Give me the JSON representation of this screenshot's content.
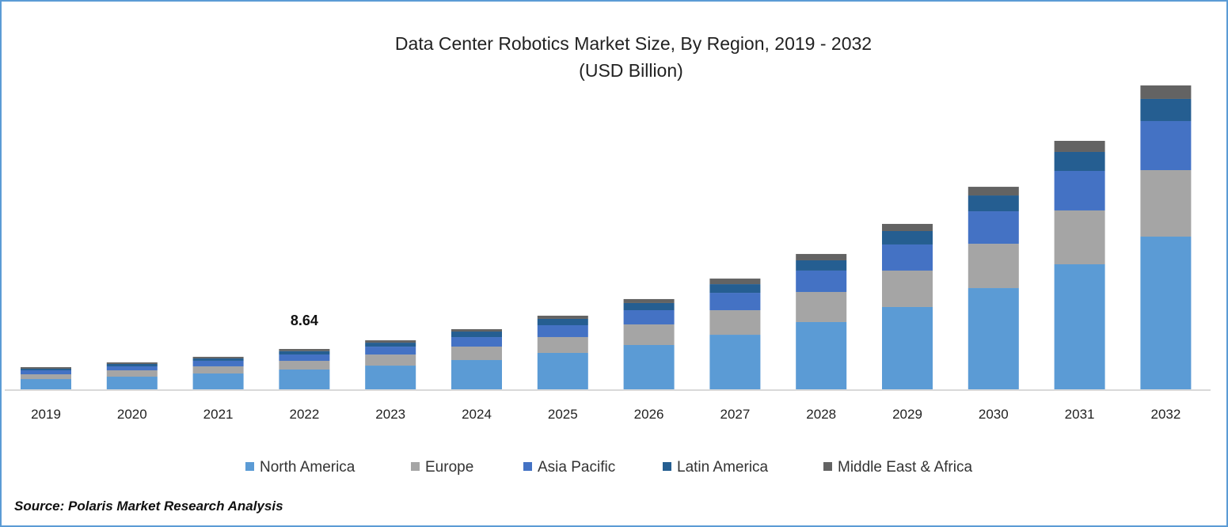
{
  "chart_data": {
    "type": "bar",
    "stacked": true,
    "title": "Data Center Robotics Market Size, By Region, 2019 - 2032",
    "subtitle": "(USD Billion)",
    "xlabel": "",
    "ylabel": "",
    "ylim": [
      0,
      70
    ],
    "grid": false,
    "legend": "bottom",
    "categories": [
      "2019",
      "2020",
      "2021",
      "2022",
      "2023",
      "2024",
      "2025",
      "2026",
      "2027",
      "2028",
      "2029",
      "2030",
      "2031",
      "2032"
    ],
    "series": [
      {
        "name": "North America",
        "color": "#5b9bd5",
        "values": [
          2.2,
          2.71,
          3.39,
          4.24,
          5.08,
          6.27,
          7.8,
          9.49,
          11.69,
          14.41,
          17.63,
          21.69,
          26.78,
          32.71
        ]
      },
      {
        "name": "Europe",
        "color": "#a5a5a5",
        "values": [
          1.02,
          1.36,
          1.53,
          1.86,
          2.37,
          2.88,
          3.39,
          4.41,
          5.25,
          6.44,
          7.8,
          9.49,
          11.53,
          14.24
        ]
      },
      {
        "name": "Asia Pacific",
        "color": "#4472c4",
        "values": [
          0.85,
          0.85,
          1.19,
          1.36,
          1.69,
          2.03,
          2.54,
          3.05,
          3.73,
          4.58,
          5.59,
          6.95,
          8.47,
          10.51
        ]
      },
      {
        "name": "Latin America",
        "color": "#255e91",
        "values": [
          0.34,
          0.51,
          0.51,
          0.73,
          0.85,
          1.19,
          1.36,
          1.53,
          1.86,
          2.2,
          2.88,
          3.39,
          4.07,
          4.75
        ]
      },
      {
        "name": "Middle East & Africa",
        "color": "#636363",
        "values": [
          0.34,
          0.34,
          0.34,
          0.45,
          0.51,
          0.51,
          0.68,
          0.85,
          1.19,
          1.36,
          1.53,
          1.86,
          2.37,
          2.88
        ]
      }
    ],
    "annotations": [
      {
        "category": "2022",
        "text": "8.64"
      }
    ]
  },
  "source": "Source: Polaris Market Research Analysis"
}
